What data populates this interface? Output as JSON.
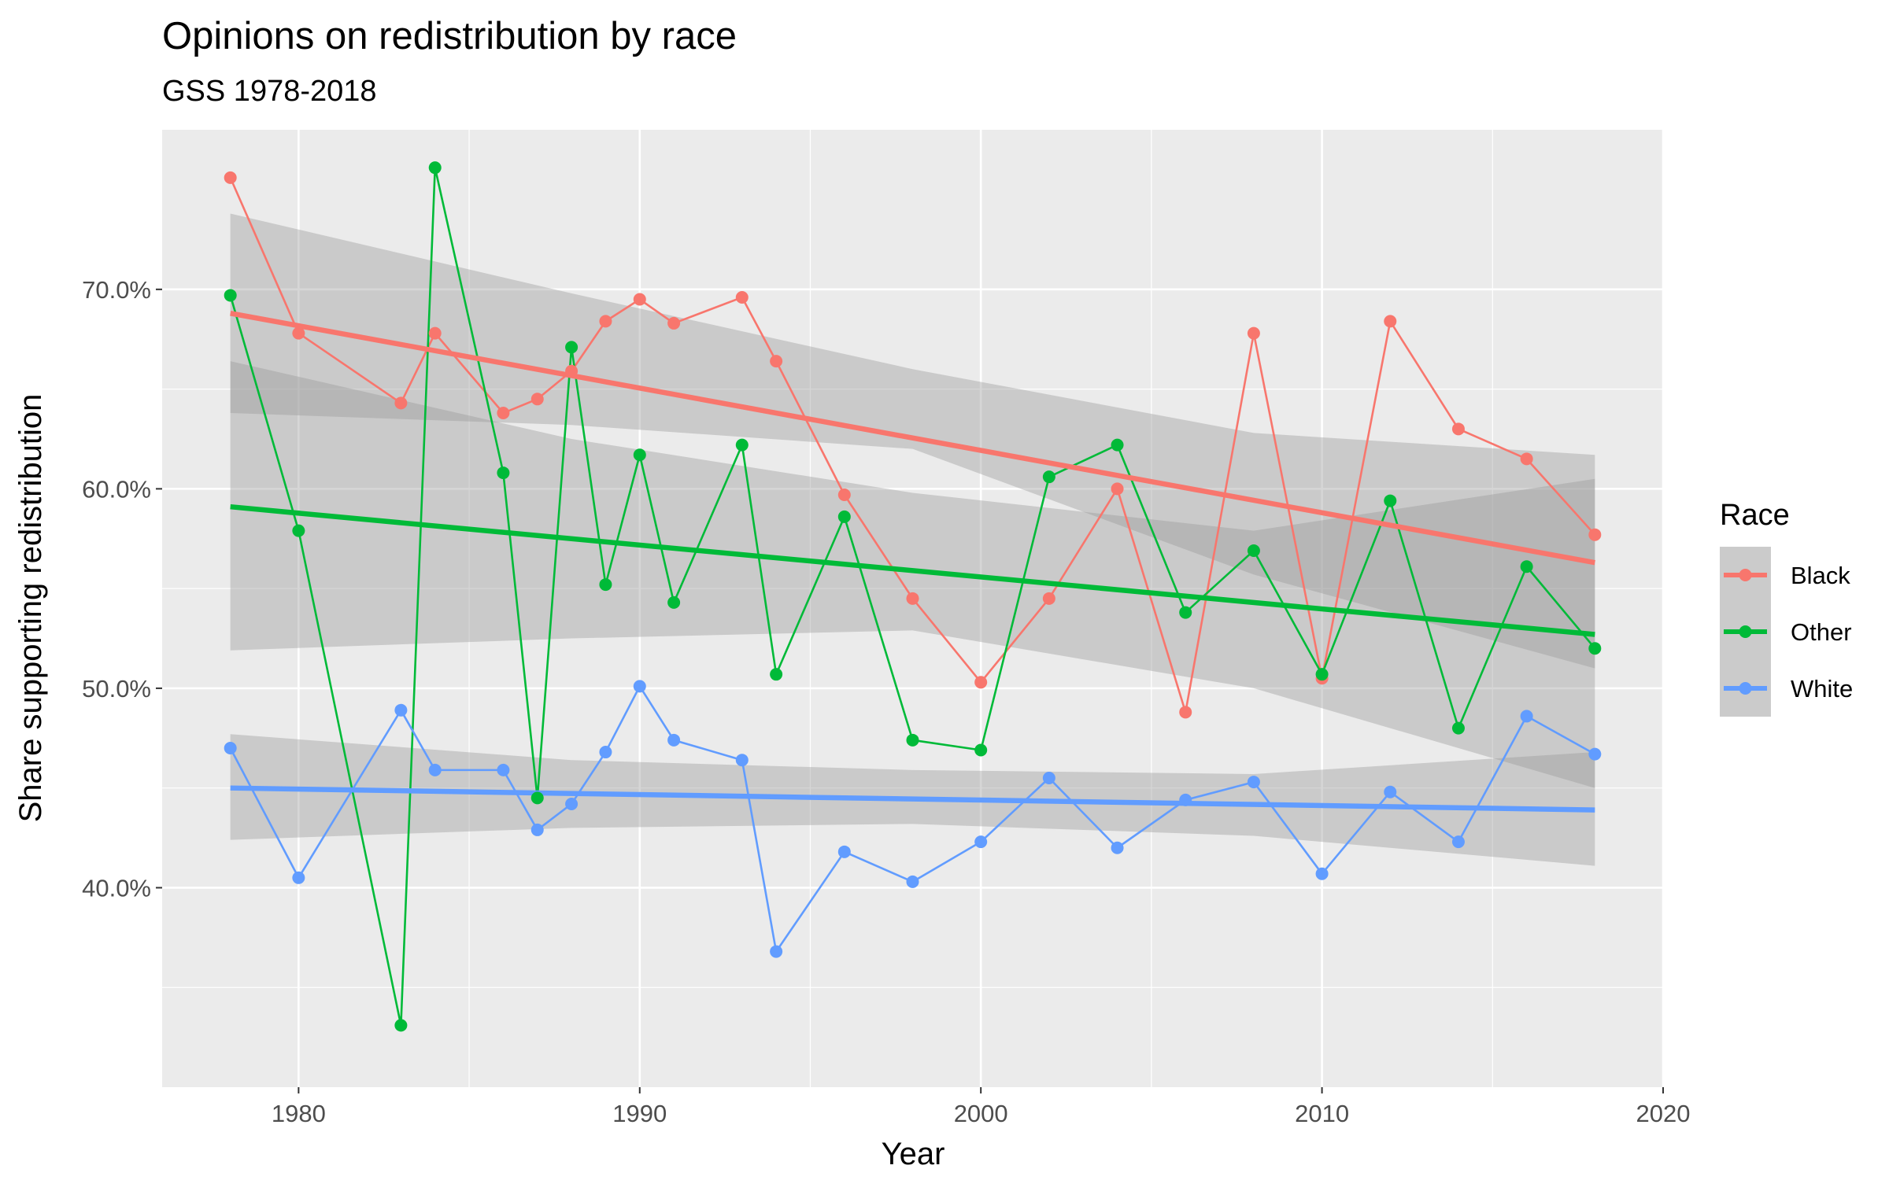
{
  "chart_data": {
    "type": "line",
    "title": "Opinions on redistribution by race",
    "subtitle": "GSS 1978-2018",
    "xlabel": "Year",
    "ylabel": "Share supporting redistribution",
    "xlim": [
      1976,
      2020
    ],
    "ylim": [
      0.3,
      0.78
    ],
    "x_ticks": [
      1980,
      1990,
      2000,
      2010,
      2020
    ],
    "y_ticks": [
      0.4,
      0.5,
      0.6,
      0.7
    ],
    "y_tick_labels": [
      "40.0%",
      "50.0%",
      "60.0%",
      "70.0%"
    ],
    "grid": true,
    "legend": {
      "title": "Race",
      "position": "right"
    },
    "series": [
      {
        "name": "Black",
        "color": "#F8766D",
        "points": [
          [
            1978,
            0.756
          ],
          [
            1980,
            0.678
          ],
          [
            1983,
            0.643
          ],
          [
            1984,
            0.678
          ],
          [
            1986,
            0.638
          ],
          [
            1987,
            0.645
          ],
          [
            1988,
            0.659
          ],
          [
            1989,
            0.684
          ],
          [
            1990,
            0.695
          ],
          [
            1991,
            0.683
          ],
          [
            1993,
            0.696
          ],
          [
            1994,
            0.664
          ],
          [
            1996,
            0.597
          ],
          [
            1998,
            0.545
          ],
          [
            2000,
            0.503
          ],
          [
            2002,
            0.545
          ],
          [
            2004,
            0.6
          ],
          [
            2006,
            0.488
          ],
          [
            2008,
            0.678
          ],
          [
            2010,
            0.505
          ],
          [
            2012,
            0.684
          ],
          [
            2014,
            0.63
          ],
          [
            2016,
            0.615
          ],
          [
            2018,
            0.577
          ]
        ],
        "trend": {
          "start": [
            1978,
            0.688
          ],
          "end": [
            2018,
            0.563
          ]
        },
        "ci_band": {
          "x": [
            1978,
            1988,
            1998,
            2008,
            2018
          ],
          "lower": [
            0.638,
            0.632,
            0.62,
            0.557,
            0.51
          ],
          "upper": [
            0.738,
            0.698,
            0.66,
            0.628,
            0.617
          ]
        }
      },
      {
        "name": "Other",
        "color": "#00BA38",
        "points": [
          [
            1978,
            0.697
          ],
          [
            1980,
            0.579
          ],
          [
            1983,
            0.331
          ],
          [
            1984,
            0.761
          ],
          [
            1986,
            0.608
          ],
          [
            1987,
            0.445
          ],
          [
            1988,
            0.671
          ],
          [
            1989,
            0.552
          ],
          [
            1990,
            0.617
          ],
          [
            1991,
            0.543
          ],
          [
            1993,
            0.622
          ],
          [
            1994,
            0.507
          ],
          [
            1996,
            0.586
          ],
          [
            1998,
            0.474
          ],
          [
            2000,
            0.469
          ],
          [
            2002,
            0.606
          ],
          [
            2004,
            0.622
          ],
          [
            2006,
            0.538
          ],
          [
            2008,
            0.569
          ],
          [
            2010,
            0.507
          ],
          [
            2012,
            0.594
          ],
          [
            2014,
            0.48
          ],
          [
            2016,
            0.561
          ],
          [
            2018,
            0.52
          ]
        ],
        "trend": {
          "start": [
            1978,
            0.591
          ],
          "end": [
            2018,
            0.527
          ]
        },
        "ci_band": {
          "x": [
            1978,
            1988,
            1998,
            2008,
            2018
          ],
          "lower": [
            0.519,
            0.525,
            0.529,
            0.5,
            0.45
          ],
          "upper": [
            0.664,
            0.625,
            0.598,
            0.579,
            0.605
          ]
        }
      },
      {
        "name": "White",
        "color": "#619CFF",
        "points": [
          [
            1978,
            0.47
          ],
          [
            1980,
            0.405
          ],
          [
            1983,
            0.489
          ],
          [
            1984,
            0.459
          ],
          [
            1986,
            0.459
          ],
          [
            1987,
            0.429
          ],
          [
            1988,
            0.442
          ],
          [
            1989,
            0.468
          ],
          [
            1990,
            0.501
          ],
          [
            1991,
            0.474
          ],
          [
            1993,
            0.464
          ],
          [
            1994,
            0.368
          ],
          [
            1996,
            0.418
          ],
          [
            1998,
            0.403
          ],
          [
            2000,
            0.423
          ],
          [
            2002,
            0.455
          ],
          [
            2004,
            0.42
          ],
          [
            2006,
            0.444
          ],
          [
            2008,
            0.453
          ],
          [
            2010,
            0.407
          ],
          [
            2012,
            0.448
          ],
          [
            2014,
            0.423
          ],
          [
            2016,
            0.486
          ],
          [
            2018,
            0.467
          ]
        ],
        "trend": {
          "start": [
            1978,
            0.45
          ],
          "end": [
            2018,
            0.439
          ]
        },
        "ci_band": {
          "x": [
            1978,
            1988,
            1998,
            2008,
            2018
          ],
          "lower": [
            0.424,
            0.43,
            0.432,
            0.426,
            0.411
          ],
          "upper": [
            0.477,
            0.464,
            0.459,
            0.457,
            0.468
          ]
        }
      }
    ]
  }
}
